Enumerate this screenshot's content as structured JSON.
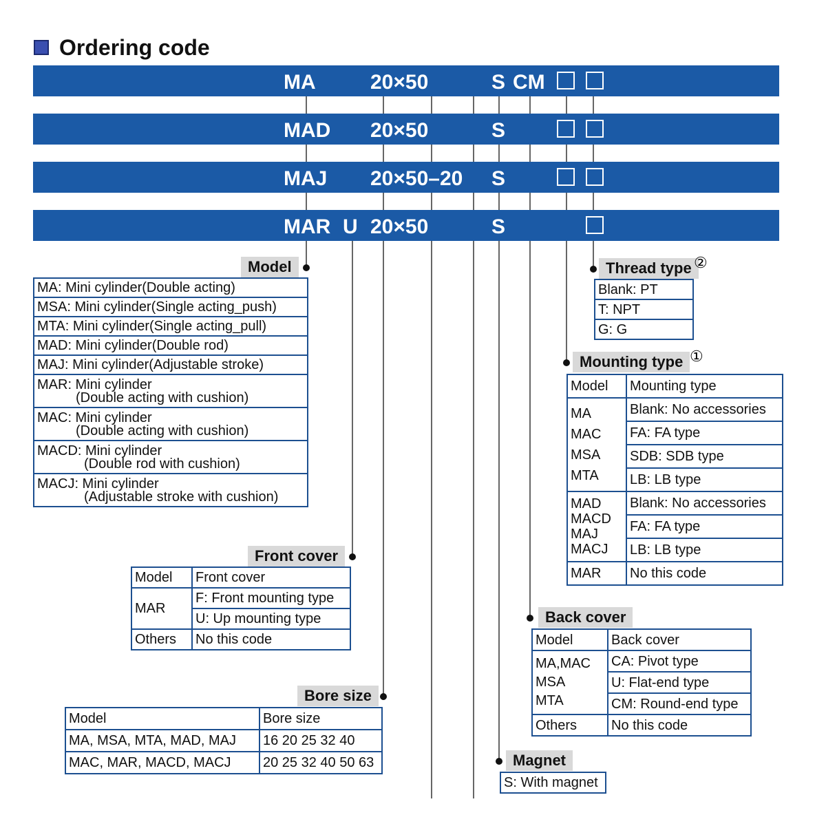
{
  "title": "Ordering code",
  "bars": [
    {
      "tokens": [
        "MA",
        "20×50",
        "S",
        "CM"
      ]
    },
    {
      "tokens": [
        "MAD",
        "20×50",
        "S"
      ]
    },
    {
      "tokens": [
        "MAJ",
        "20×50–20",
        "S"
      ]
    },
    {
      "tokens": [
        "MAR",
        "U",
        "20×50",
        "S"
      ]
    }
  ],
  "model": {
    "label": "Model",
    "rows": [
      [
        "MA: Mini cylinder(Double acting)"
      ],
      [
        "MSA: Mini cylinder(Single acting_push)"
      ],
      [
        "MTA: Mini cylinder(Single acting_pull)"
      ],
      [
        "MAD: Mini cylinder(Double rod)"
      ],
      [
        "MAJ: Mini cylinder(Adjustable stroke)"
      ],
      [
        "MAR: Mini cylinder",
        "(Double acting with cushion)"
      ],
      [
        "MAC: Mini cylinder",
        "(Double acting with cushion)"
      ],
      [
        "MACD: Mini cylinder",
        "(Double rod with cushion)"
      ],
      [
        "MACJ: Mini cylinder",
        "(Adjustable stroke with cushion)"
      ]
    ]
  },
  "thread_type": {
    "label": "Thread type",
    "note": "②",
    "rows": [
      "Blank: PT",
      "T: NPT",
      "G: G"
    ]
  },
  "mounting_type": {
    "label": "Mounting type",
    "note": "①",
    "header": [
      "Model",
      "Mounting type"
    ],
    "groups": [
      {
        "models": [
          "MA",
          "MAC",
          "MSA",
          "MTA"
        ],
        "options": [
          "Blank: No accessories",
          "FA: FA type",
          "SDB: SDB type",
          "LB: LB type"
        ]
      },
      {
        "models": [
          "MAD",
          "MACD",
          "MAJ",
          "MACJ"
        ],
        "options": [
          "Blank: No accessories",
          "FA: FA type",
          "LB: LB type"
        ]
      },
      {
        "models": [
          "MAR"
        ],
        "options": [
          "No this code"
        ]
      }
    ]
  },
  "front_cover": {
    "label": "Front cover",
    "header": [
      "Model",
      "Front cover"
    ],
    "groups": [
      {
        "models": [
          "MAR"
        ],
        "options": [
          "F: Front mounting type",
          "U: Up mounting type"
        ]
      },
      {
        "models": [
          "Others"
        ],
        "options": [
          "No this code"
        ]
      }
    ]
  },
  "back_cover": {
    "label": "Back cover",
    "header": [
      "Model",
      "Back cover"
    ],
    "groups": [
      {
        "models": [
          "MA,MAC",
          "MSA",
          "MTA"
        ],
        "options": [
          "CA: Pivot type",
          "U: Flat-end type",
          "CM: Round-end type"
        ]
      },
      {
        "models": [
          "Others"
        ],
        "options": [
          "No this code"
        ]
      }
    ]
  },
  "bore_size": {
    "label": "Bore size",
    "header": [
      "Model",
      "Bore size"
    ],
    "groups": [
      {
        "models": [
          "MA, MSA, MTA, MAD, MAJ"
        ],
        "options": [
          "16 20 25 32 40"
        ]
      },
      {
        "models": [
          "MAC, MAR, MACD, MACJ"
        ],
        "options": [
          "20 25 32 40 50 63"
        ]
      }
    ]
  },
  "magnet": {
    "label": "Magnet",
    "rows": [
      "S: With magnet"
    ]
  }
}
